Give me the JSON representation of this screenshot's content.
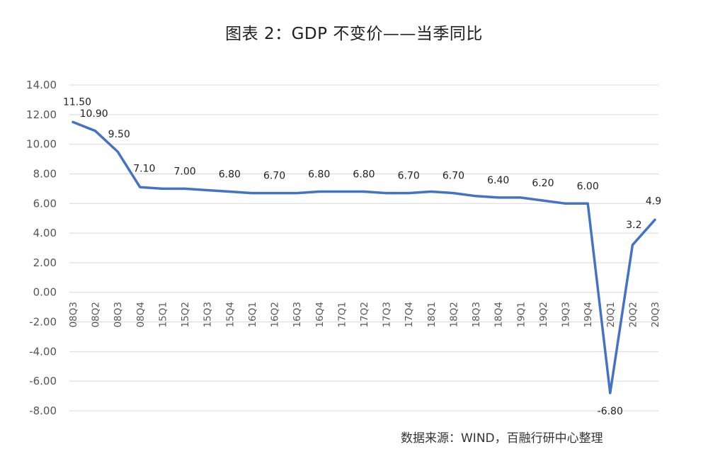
{
  "title": "图表 2：GDP 不变价——当季同比",
  "source": "数据来源：WIND，百融行研中心整理",
  "colors": {
    "line": "#4472C4",
    "grid": "#d9d9d9"
  },
  "chart_data": {
    "type": "line",
    "title": "图表 2：GDP 不变价——当季同比",
    "xlabel": "",
    "ylabel": "",
    "ylim": [
      -8,
      14
    ],
    "yticks": [
      "14.00",
      "12.00",
      "10.00",
      "8.00",
      "6.00",
      "4.00",
      "2.00",
      "0.00",
      "-2.00",
      "-4.00",
      "-6.00",
      "-8.00"
    ],
    "grid": true,
    "legend": "none",
    "categories": [
      "08Q3",
      "08Q2",
      "08Q3",
      "08Q4",
      "15Q1",
      "15Q2",
      "15Q3",
      "15Q4",
      "16Q1",
      "16Q2",
      "16Q3",
      "16Q4",
      "17Q1",
      "17Q2",
      "17Q3",
      "17Q4",
      "18Q1",
      "18Q2",
      "18Q3",
      "18Q4",
      "19Q1",
      "19Q2",
      "19Q3",
      "19Q4",
      "20Q1",
      "20Q2",
      "20Q3"
    ],
    "values": [
      11.5,
      10.9,
      9.5,
      7.1,
      7.0,
      7.0,
      6.9,
      6.8,
      6.7,
      6.7,
      6.7,
      6.8,
      6.8,
      6.8,
      6.7,
      6.7,
      6.8,
      6.7,
      6.5,
      6.4,
      6.4,
      6.2,
      6.0,
      6.0,
      -6.8,
      3.2,
      4.9
    ],
    "data_labels": [
      {
        "index": 0,
        "text": "11.50"
      },
      {
        "index": 1,
        "text": "10.90"
      },
      {
        "index": 2,
        "text": "9.50"
      },
      {
        "index": 3,
        "text": "7.10"
      },
      {
        "index": 5,
        "text": "7.00"
      },
      {
        "index": 7,
        "text": "6.80"
      },
      {
        "index": 9,
        "text": "6.70"
      },
      {
        "index": 11,
        "text": "6.80"
      },
      {
        "index": 13,
        "text": "6.80"
      },
      {
        "index": 15,
        "text": "6.70"
      },
      {
        "index": 17,
        "text": "6.70"
      },
      {
        "index": 19,
        "text": "6.40"
      },
      {
        "index": 21,
        "text": "6.20"
      },
      {
        "index": 23,
        "text": "6.00"
      },
      {
        "index": 24,
        "text": "-6.80"
      },
      {
        "index": 25,
        "text": "3.2"
      },
      {
        "index": 26,
        "text": "4.9"
      }
    ]
  }
}
